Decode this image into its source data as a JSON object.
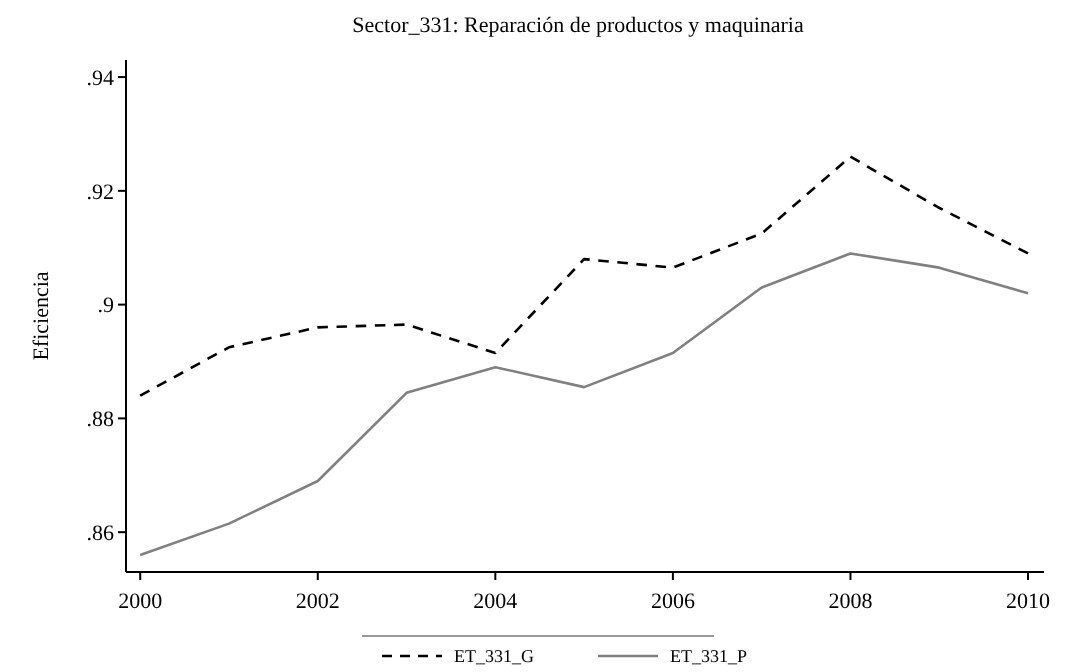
{
  "chart_data": {
    "type": "line",
    "title": "Sector_331: Reparación de productos y maquinaria",
    "ylabel": "Eficiencia",
    "x": [
      2000,
      2001,
      2002,
      2003,
      2004,
      2005,
      2006,
      2007,
      2008,
      2009,
      2010
    ],
    "xlim": [
      1999.84,
      2010.18
    ],
    "xticks": [
      2000,
      2002,
      2004,
      2006,
      2008,
      2010
    ],
    "ylim": [
      0.853,
      0.943
    ],
    "yticks": [
      {
        "value": 0.86,
        "label": ".86"
      },
      {
        "value": 0.88,
        "label": ".88"
      },
      {
        "value": 0.9,
        "label": ".9"
      },
      {
        "value": 0.92,
        "label": ".92"
      },
      {
        "value": 0.94,
        "label": ".94"
      }
    ],
    "legend": "bottom",
    "grid": false,
    "series": [
      {
        "name": "ET_331_G",
        "color": "#000000",
        "line_style": "dashed",
        "values": [
          0.884,
          0.8925,
          0.896,
          0.8965,
          0.8915,
          0.908,
          0.9065,
          0.9125,
          0.926,
          0.917,
          0.909
        ]
      },
      {
        "name": "ET_331_P",
        "color": "#808080",
        "line_style": "solid",
        "values": [
          0.856,
          0.8615,
          0.869,
          0.8845,
          0.889,
          0.8855,
          0.8915,
          0.903,
          0.909,
          0.9065,
          0.902
        ]
      }
    ]
  }
}
